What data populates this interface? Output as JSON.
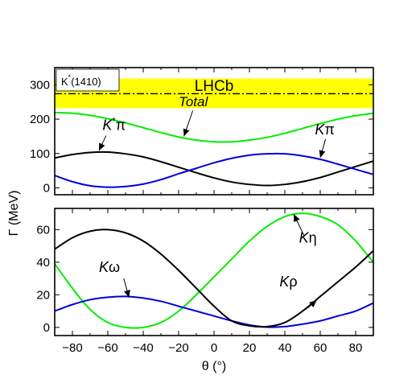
{
  "chart_data": [
    {
      "type": "line",
      "panel": "top",
      "x": [
        -90,
        -80,
        -70,
        -60,
        -50,
        -40,
        -30,
        -20,
        -10,
        0,
        10,
        20,
        30,
        40,
        50,
        60,
        70,
        80,
        90
      ],
      "xlim": [
        -90,
        90
      ],
      "ylim": [
        -20,
        350
      ],
      "yticks": [
        0,
        100,
        200,
        300
      ],
      "band": {
        "name": "LHCb",
        "lower": 232,
        "upper": 318,
        "central": 274,
        "color": "#ffff00"
      },
      "box_label": {
        "base": "K",
        "sup": "*",
        "rest": "(1410)"
      },
      "series": [
        {
          "name": "Total",
          "color": "#00ee00",
          "values": [
            219,
            217,
            211,
            201,
            189,
            175,
            161,
            148,
            139,
            134,
            134,
            139,
            147,
            159,
            173,
            187,
            200,
            210,
            217
          ]
        },
        {
          "name": "K*π",
          "color": "#000000",
          "values": [
            87,
            97,
            103,
            104,
            99,
            90,
            76,
            60,
            44,
            29,
            17,
            10,
            7,
            10,
            18,
            30,
            46,
            62,
            78
          ]
        },
        {
          "name": "Kπ",
          "color": "#0000dd",
          "values": [
            36,
            18,
            6,
            2,
            4,
            11,
            24,
            41,
            57,
            73,
            86,
            95,
            99,
            99,
            93,
            83,
            69,
            54,
            39
          ]
        }
      ],
      "annotations": [
        {
          "text": "Total",
          "x": -20,
          "y": 238
        },
        {
          "text": "K*π",
          "x": -63,
          "y": 168
        },
        {
          "text": "Kπ",
          "x": 57,
          "y": 156
        }
      ]
    },
    {
      "type": "line",
      "panel": "bottom",
      "x": [
        -90,
        -80,
        -70,
        -60,
        -50,
        -40,
        -30,
        -20,
        -10,
        0,
        10,
        20,
        30,
        40,
        50,
        60,
        70,
        80,
        90
      ],
      "xlim": [
        -90,
        90
      ],
      "ylim": [
        -5,
        73
      ],
      "yticks": [
        0,
        20,
        40,
        60
      ],
      "xticks": [
        -80,
        -60,
        -40,
        -20,
        0,
        20,
        40,
        60,
        80
      ],
      "xlabel": "θ (°)",
      "ylabel": "Γ (MeV)",
      "series": [
        {
          "name": "Kη",
          "color": "#00ee00",
          "values": [
            39,
            24,
            11,
            3,
            0,
            0,
            3,
            10,
            20,
            31,
            42,
            53,
            62,
            68,
            70,
            68,
            63,
            53,
            40
          ]
        },
        {
          "name": "Kω",
          "color": "#0000dd",
          "values": [
            10,
            14,
            17,
            18.5,
            19,
            18,
            16,
            13,
            10,
            7,
            4,
            1.5,
            0.2,
            0.5,
            2,
            4,
            7,
            10,
            15
          ]
        },
        {
          "name": "Kρ",
          "color": "#000000",
          "values": [
            48,
            55,
            59,
            60,
            58,
            53,
            45,
            35,
            24,
            13,
            4,
            1,
            0.5,
            3,
            10,
            19,
            28,
            37,
            47
          ]
        }
      ],
      "annotations": [
        {
          "text": "Kη",
          "x": 48,
          "y": 54
        },
        {
          "text": "Kω",
          "x": -65,
          "y": 34
        },
        {
          "text": "Kρ",
          "x": 37,
          "y": 25
        }
      ]
    }
  ]
}
